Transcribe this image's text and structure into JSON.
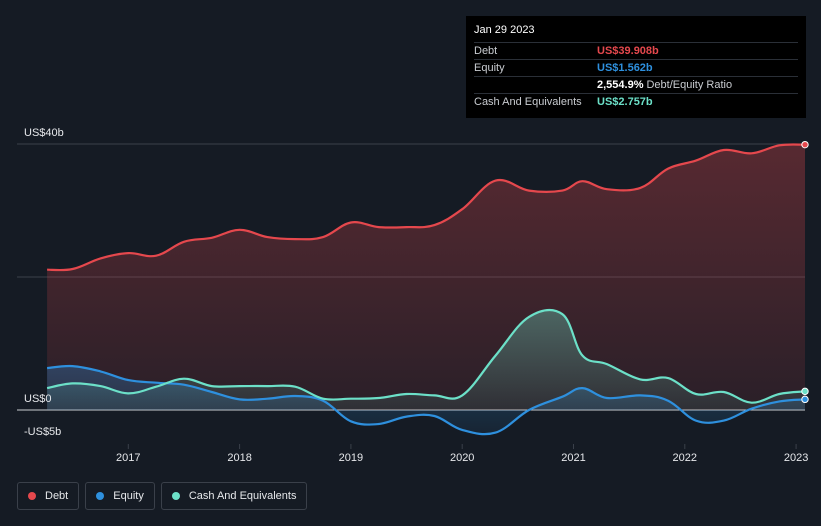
{
  "colors": {
    "background": "#151b24",
    "debt": "#e5484d",
    "equity": "#2e90de",
    "cash": "#6ce0c8",
    "grid": "#3a404a"
  },
  "tooltip": {
    "date": "Jan 29 2023",
    "rows": [
      {
        "label": "Debt",
        "value": "US$39.908b",
        "color": "#e5484d",
        "extra": ""
      },
      {
        "label": "Equity",
        "value": "US$1.562b",
        "color": "#2e90de",
        "extra": ""
      },
      {
        "label": "",
        "value": "2,554.9%",
        "color": "#ffffff",
        "extra": "Debt/Equity Ratio"
      },
      {
        "label": "Cash And Equivalents",
        "value": "US$2.757b",
        "color": "#6ce0c8",
        "extra": ""
      }
    ]
  },
  "legend": [
    {
      "label": "Debt",
      "color": "#e5484d"
    },
    {
      "label": "Equity",
      "color": "#2e90de"
    },
    {
      "label": "Cash And Equivalents",
      "color": "#6ce0c8"
    }
  ],
  "chart_data": {
    "type": "area",
    "title": "",
    "xlabel": "",
    "ylabel": "",
    "xlim": [
      2016.0,
      2023.08
    ],
    "ylim": [
      -5,
      40
    ],
    "y_tick_labels": [
      {
        "value": 40,
        "label": "US$40b"
      },
      {
        "value": 0,
        "label": "US$0"
      },
      {
        "value": -5,
        "label": "-US$5b"
      }
    ],
    "gridlines_y": [
      40,
      20,
      0
    ],
    "x_ticks": [
      {
        "value": 2017,
        "label": "2017"
      },
      {
        "value": 2018,
        "label": "2018"
      },
      {
        "value": 2019,
        "label": "2019"
      },
      {
        "value": 2020,
        "label": "2020"
      },
      {
        "value": 2021,
        "label": "2021"
      },
      {
        "value": 2022,
        "label": "2022"
      },
      {
        "value": 2023,
        "label": "2023"
      }
    ],
    "series": [
      {
        "name": "Debt",
        "color": "#e5484d",
        "x": [
          2016.27,
          2016.5,
          2016.75,
          2017.0,
          2017.25,
          2017.5,
          2017.75,
          2018.0,
          2018.25,
          2018.5,
          2018.75,
          2019.0,
          2019.25,
          2019.5,
          2019.75,
          2020.0,
          2020.3,
          2020.6,
          2020.9,
          2021.08,
          2021.3,
          2021.6,
          2021.85,
          2022.1,
          2022.35,
          2022.6,
          2022.85,
          2023.08
        ],
        "values": [
          21.1,
          21.2,
          22.8,
          23.6,
          23.2,
          25.3,
          25.9,
          27.1,
          26.0,
          25.7,
          26.0,
          28.2,
          27.5,
          27.5,
          27.8,
          30.2,
          34.5,
          33.0,
          33.0,
          34.4,
          33.2,
          33.4,
          36.3,
          37.5,
          39.1,
          38.6,
          39.8,
          39.9
        ]
      },
      {
        "name": "Equity",
        "color": "#2e90de",
        "x": [
          2016.27,
          2016.5,
          2016.75,
          2017.0,
          2017.25,
          2017.5,
          2017.75,
          2018.0,
          2018.25,
          2018.5,
          2018.75,
          2019.0,
          2019.25,
          2019.5,
          2019.75,
          2020.0,
          2020.3,
          2020.6,
          2020.9,
          2021.08,
          2021.3,
          2021.6,
          2021.85,
          2022.1,
          2022.35,
          2022.6,
          2022.85,
          2023.08
        ],
        "values": [
          6.3,
          6.6,
          5.8,
          4.5,
          4.1,
          3.8,
          2.7,
          1.6,
          1.7,
          2.1,
          1.4,
          -1.7,
          -2.1,
          -1.0,
          -0.9,
          -3.0,
          -3.4,
          0.0,
          2.0,
          3.3,
          1.8,
          2.2,
          1.4,
          -1.6,
          -1.6,
          0.2,
          1.3,
          1.6
        ]
      },
      {
        "name": "Cash And Equivalents",
        "color": "#6ce0c8",
        "x": [
          2016.27,
          2016.5,
          2016.75,
          2017.0,
          2017.25,
          2017.5,
          2017.75,
          2018.0,
          2018.25,
          2018.5,
          2018.75,
          2019.0,
          2019.25,
          2019.5,
          2019.75,
          2020.0,
          2020.3,
          2020.6,
          2020.9,
          2021.08,
          2021.3,
          2021.6,
          2021.85,
          2022.1,
          2022.35,
          2022.6,
          2022.85,
          2023.08
        ],
        "values": [
          3.3,
          4.0,
          3.6,
          2.5,
          3.5,
          4.7,
          3.6,
          3.6,
          3.6,
          3.5,
          1.7,
          1.7,
          1.8,
          2.4,
          2.2,
          2.2,
          8.2,
          14.0,
          14.4,
          8.2,
          6.9,
          4.6,
          4.8,
          2.4,
          2.7,
          1.1,
          2.4,
          2.8
        ]
      }
    ],
    "legend_position": "bottom-left"
  }
}
